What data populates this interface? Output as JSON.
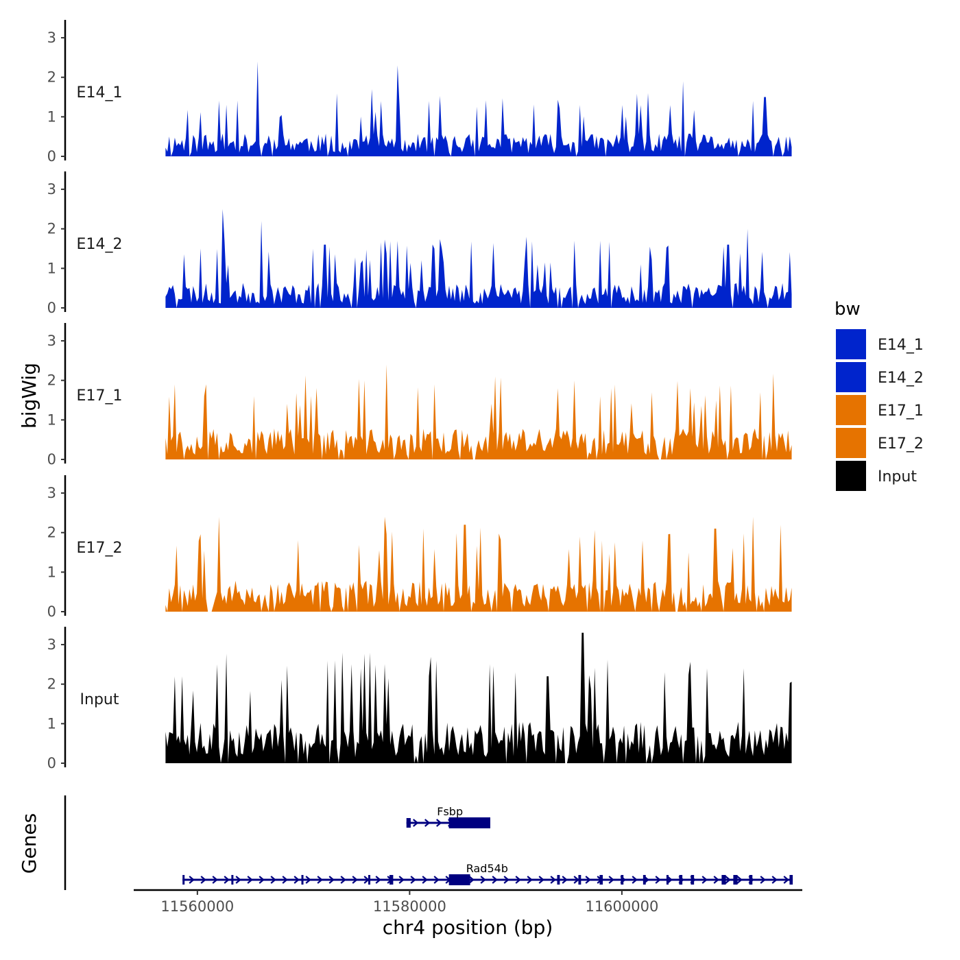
{
  "chart_data": {
    "type": "area",
    "description_free": true,
    "ylabel": "bigWig",
    "genes_label": "Genes",
    "xlabel": "chr4 position (bp)",
    "xlim": [
      11554000,
      11617000
    ],
    "data_range": [
      11557000,
      11616000
    ],
    "x_ticks": [
      11560000,
      11580000,
      11600000
    ],
    "x_tick_labels": [
      "11560000",
      "11580000",
      "11600000"
    ],
    "ylim": [
      0,
      3.4
    ],
    "y_ticks": [
      0,
      1,
      2,
      3
    ],
    "y_tick_labels": [
      "0",
      "1",
      "2",
      "3"
    ],
    "tracks": [
      {
        "name": "E14_1",
        "color": "#0024cc",
        "seed": 11,
        "base": 0.55,
        "peaks": [
          [
            11565700,
            2.4
          ],
          [
            11578800,
            2.3
          ],
          [
            11605800,
            1.9
          ],
          [
            11581800,
            1.4
          ],
          [
            11576500,
            1.7
          ],
          [
            11613500,
            1.5
          ],
          [
            11596000,
            1.3
          ],
          [
            11600000,
            1.3
          ],
          [
            11602500,
            1.6
          ]
        ]
      },
      {
        "name": "E14_2",
        "color": "#0024cc",
        "seed": 23,
        "base": 0.6,
        "peaks": [
          [
            11562400,
            2.5
          ],
          [
            11566000,
            2.2
          ],
          [
            11611800,
            2.0
          ],
          [
            11591000,
            1.8
          ],
          [
            11595500,
            1.7
          ],
          [
            11598000,
            1.7
          ],
          [
            11610000,
            1.6
          ],
          [
            11583000,
            1.5
          ],
          [
            11572000,
            1.6
          ]
        ]
      },
      {
        "name": "E17_1",
        "color": "#e67300",
        "seed": 37,
        "base": 0.75,
        "peaks": [
          [
            11577800,
            2.4
          ],
          [
            11575800,
            2.0
          ],
          [
            11588000,
            2.1
          ],
          [
            11560800,
            1.9
          ],
          [
            11557800,
            1.9
          ],
          [
            11599000,
            1.8
          ],
          [
            11606500,
            1.8
          ],
          [
            11613000,
            1.7
          ],
          [
            11594000,
            1.8
          ]
        ]
      },
      {
        "name": "E17_2",
        "color": "#e67300",
        "seed": 53,
        "base": 0.75,
        "peaks": [
          [
            11562000,
            2.4
          ],
          [
            11577600,
            2.4
          ],
          [
            11612300,
            2.4
          ],
          [
            11615000,
            2.2
          ],
          [
            11581300,
            2.1
          ],
          [
            11585200,
            2.2
          ],
          [
            11608800,
            2.1
          ],
          [
            11602000,
            1.8
          ],
          [
            11596000,
            1.9
          ]
        ]
      },
      {
        "name": "Input",
        "color": "#000000",
        "seed": 71,
        "base": 1.0,
        "peaks": [
          [
            11596300,
            3.3
          ],
          [
            11576200,
            2.8
          ],
          [
            11561800,
            2.5
          ],
          [
            11590000,
            2.3
          ],
          [
            11608000,
            2.4
          ],
          [
            11611500,
            2.4
          ],
          [
            11604000,
            2.3
          ],
          [
            11593000,
            2.2
          ],
          [
            11558500,
            2.2
          ]
        ]
      }
    ],
    "legend": {
      "title": "bw",
      "entries": [
        {
          "label": "E14_1",
          "color": "#0024cc"
        },
        {
          "label": "E14_2",
          "color": "#0024cc"
        },
        {
          "label": "E17_1",
          "color": "#e67300"
        },
        {
          "label": "E17_2",
          "color": "#e67300"
        },
        {
          "label": "Input",
          "color": "#000000"
        }
      ]
    },
    "genes": [
      {
        "name": "Fsbp",
        "start": 11579700,
        "end": 11587600,
        "strand": "+",
        "color": "#000080",
        "exons": [
          [
            11579700,
            11580100
          ],
          [
            11583700,
            11587600
          ]
        ],
        "thick": [
          [
            11583700,
            11587600
          ]
        ]
      },
      {
        "name": "Rad54b",
        "start": 11558600,
        "end": 11616100,
        "strand": "+",
        "color": "#000080",
        "exons": [
          [
            11558600,
            11558750
          ],
          [
            11563200,
            11563350
          ],
          [
            11569800,
            11569950
          ],
          [
            11576100,
            11576250
          ],
          [
            11578100,
            11578450
          ],
          [
            11583700,
            11585700
          ],
          [
            11593900,
            11594150
          ],
          [
            11595900,
            11596150
          ],
          [
            11597900,
            11598200
          ],
          [
            11599900,
            11600150
          ],
          [
            11602000,
            11602250
          ],
          [
            11604200,
            11604400
          ],
          [
            11605400,
            11605700
          ],
          [
            11606500,
            11606800
          ],
          [
            11609400,
            11609800
          ],
          [
            11610500,
            11610900
          ],
          [
            11612000,
            11612300
          ],
          [
            11615800,
            11616100
          ]
        ],
        "thick": [
          [
            11583700,
            11585700
          ]
        ]
      }
    ]
  }
}
